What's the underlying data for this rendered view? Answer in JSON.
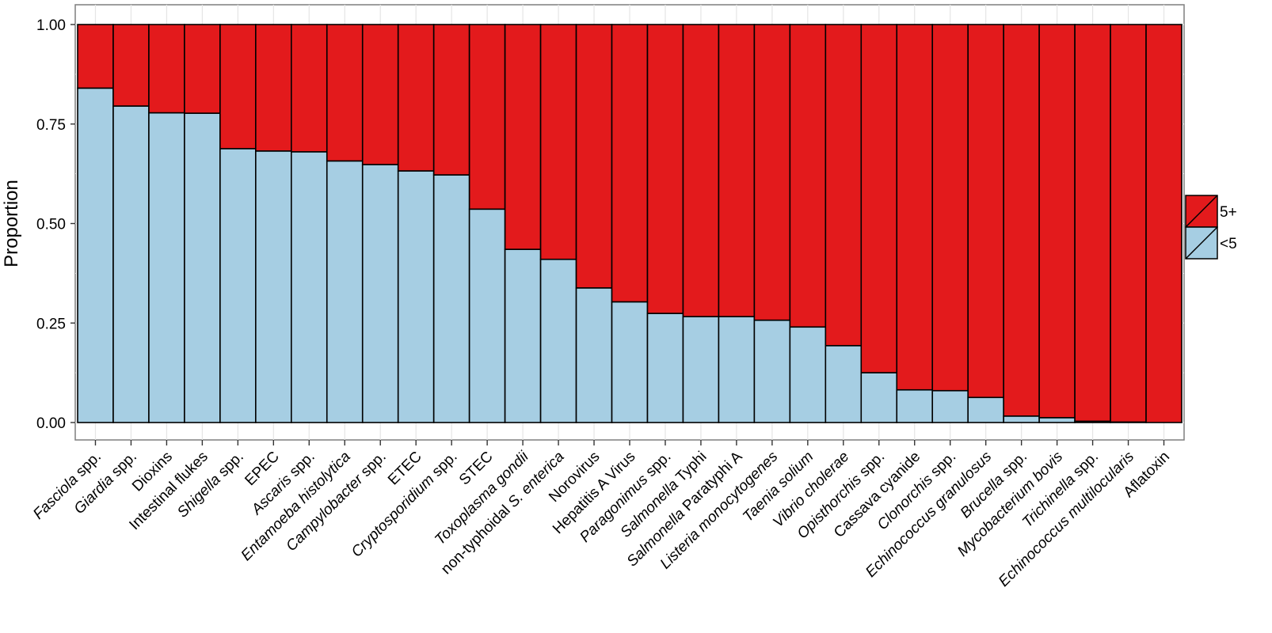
{
  "chart_data": {
    "type": "bar",
    "stacked": true,
    "ylabel": "Proportion",
    "ylim": [
      0,
      1
    ],
    "yticks": [
      "0.00",
      "0.25",
      "0.50",
      "0.75",
      "1.00"
    ],
    "grid": true,
    "legend_position": "right",
    "colors": {
      "5+": "#e31a1c",
      "<5": "#a6cee3"
    },
    "categories": [
      {
        "parts": [
          {
            "t": "Fasciola",
            "i": true
          },
          {
            "t": " spp.",
            "i": false
          }
        ]
      },
      {
        "parts": [
          {
            "t": "Giardia",
            "i": true
          },
          {
            "t": " spp.",
            "i": false
          }
        ]
      },
      {
        "parts": [
          {
            "t": "Dioxins",
            "i": false
          }
        ]
      },
      {
        "parts": [
          {
            "t": "Intestinal flukes",
            "i": false
          }
        ]
      },
      {
        "parts": [
          {
            "t": "Shigella",
            "i": true
          },
          {
            "t": " spp.",
            "i": false
          }
        ]
      },
      {
        "parts": [
          {
            "t": "EPEC",
            "i": false
          }
        ]
      },
      {
        "parts": [
          {
            "t": "Ascaris",
            "i": true
          },
          {
            "t": " spp.",
            "i": false
          }
        ]
      },
      {
        "parts": [
          {
            "t": "Entamoeba histolytica",
            "i": true
          }
        ]
      },
      {
        "parts": [
          {
            "t": "Campylobacter",
            "i": true
          },
          {
            "t": " spp.",
            "i": false
          }
        ]
      },
      {
        "parts": [
          {
            "t": "ETEC",
            "i": false
          }
        ]
      },
      {
        "parts": [
          {
            "t": "Cryptosporidium",
            "i": true
          },
          {
            "t": " spp.",
            "i": false
          }
        ]
      },
      {
        "parts": [
          {
            "t": "STEC",
            "i": false
          }
        ]
      },
      {
        "parts": [
          {
            "t": "Toxoplasma gondii",
            "i": true
          }
        ]
      },
      {
        "parts": [
          {
            "t": "non-typhoidal  ",
            "i": false
          },
          {
            "t": "S. enterica",
            "i": true
          }
        ]
      },
      {
        "parts": [
          {
            "t": "Norovirus",
            "i": false
          }
        ]
      },
      {
        "parts": [
          {
            "t": "Hepatitis A Virus",
            "i": false
          }
        ]
      },
      {
        "parts": [
          {
            "t": "Paragonimus",
            "i": true
          },
          {
            "t": " spp.",
            "i": false
          }
        ]
      },
      {
        "parts": [
          {
            "t": "Salmonella",
            "i": true
          },
          {
            "t": " Typhi",
            "i": false
          }
        ]
      },
      {
        "parts": [
          {
            "t": "Salmonella",
            "i": true
          },
          {
            "t": " Paratyphi A",
            "i": false
          }
        ]
      },
      {
        "parts": [
          {
            "t": "Listeria monocytogenes",
            "i": true
          }
        ]
      },
      {
        "parts": [
          {
            "t": "Taenia solium",
            "i": true
          }
        ]
      },
      {
        "parts": [
          {
            "t": "Vibrio cholerae",
            "i": true
          }
        ]
      },
      {
        "parts": [
          {
            "t": "Opisthorchis",
            "i": true
          },
          {
            "t": " spp.",
            "i": false
          }
        ]
      },
      {
        "parts": [
          {
            "t": "Cassava cyanide",
            "i": false
          }
        ]
      },
      {
        "parts": [
          {
            "t": "Clonorchis",
            "i": true
          },
          {
            "t": " spp.",
            "i": false
          }
        ]
      },
      {
        "parts": [
          {
            "t": "Echinococcus granulosus",
            "i": true
          }
        ]
      },
      {
        "parts": [
          {
            "t": "Brucella",
            "i": true
          },
          {
            "t": " spp.",
            "i": false
          }
        ]
      },
      {
        "parts": [
          {
            "t": "Mycobacterium bovis",
            "i": true
          }
        ]
      },
      {
        "parts": [
          {
            "t": "Trichinella",
            "i": true
          },
          {
            "t": " spp.",
            "i": false
          }
        ]
      },
      {
        "parts": [
          {
            "t": "Echinococcus multilocularis",
            "i": true
          }
        ]
      },
      {
        "parts": [
          {
            "t": "Aflatoxin",
            "i": false
          }
        ]
      }
    ],
    "series": [
      {
        "name": "<5",
        "values": [
          0.84,
          0.795,
          0.778,
          0.777,
          0.688,
          0.682,
          0.68,
          0.657,
          0.648,
          0.632,
          0.622,
          0.536,
          0.435,
          0.41,
          0.338,
          0.303,
          0.274,
          0.266,
          0.266,
          0.257,
          0.24,
          0.193,
          0.125,
          0.082,
          0.08,
          0.063,
          0.016,
          0.012,
          0.003,
          0.001,
          0.0
        ]
      },
      {
        "name": "5+",
        "values": [
          0.16,
          0.205,
          0.222,
          0.223,
          0.312,
          0.318,
          0.32,
          0.343,
          0.352,
          0.368,
          0.378,
          0.464,
          0.565,
          0.59,
          0.662,
          0.697,
          0.726,
          0.734,
          0.734,
          0.743,
          0.76,
          0.807,
          0.875,
          0.918,
          0.92,
          0.937,
          0.984,
          0.988,
          0.997,
          0.999,
          1.0
        ]
      }
    ],
    "legend": [
      {
        "label": "5+",
        "series": "5+"
      },
      {
        "label": "<5",
        "series": "<5"
      }
    ]
  }
}
